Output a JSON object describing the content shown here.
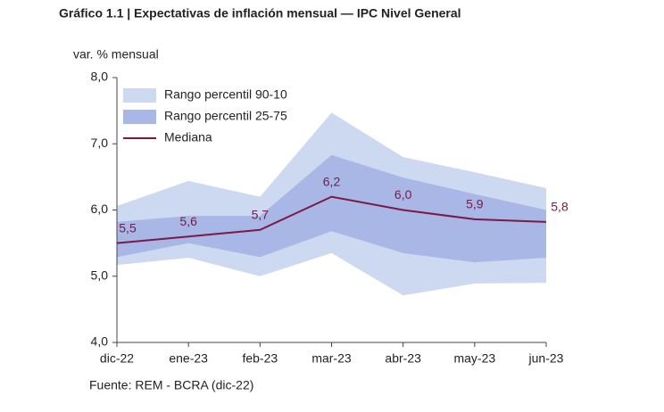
{
  "chart_data": {
    "type": "band-line",
    "title": "Gráfico 1.1 | Expectativas de inflación mensual — IPC Nivel General",
    "y_label": "var. % mensual",
    "source": "Fuente: REM - BCRA (dic-22)",
    "categories": [
      "dic-22",
      "ene-23",
      "feb-23",
      "mar-23",
      "abr-23",
      "may-23",
      "jun-23"
    ],
    "bands": [
      {
        "name": "Rango percentil 90-10",
        "color": "#cdd8f1",
        "high": [
          6.06,
          6.44,
          6.2,
          7.47,
          6.8,
          6.57,
          6.33
        ],
        "low": [
          5.17,
          5.28,
          5.0,
          5.35,
          4.71,
          4.89,
          4.9
        ]
      },
      {
        "name": "Rango percentil 25-75",
        "color": "#a8b7e5",
        "high": [
          5.82,
          5.91,
          5.91,
          6.83,
          6.49,
          6.24,
          6.0
        ],
        "low": [
          5.29,
          5.5,
          5.29,
          5.68,
          5.35,
          5.21,
          5.28
        ]
      }
    ],
    "series": [
      {
        "name": "Mediana",
        "color": "#7a1a45",
        "values": [
          5.5,
          5.6,
          5.7,
          6.2,
          6.0,
          5.86,
          5.82
        ],
        "value_labels": [
          "5,5",
          "5,6",
          "5,7",
          "6,2",
          "6,0",
          "5,9",
          "5,8"
        ]
      }
    ],
    "ylim": [
      4,
      8
    ],
    "yticks": [
      {
        "value": 4,
        "label": "4,0"
      },
      {
        "value": 5,
        "label": "5,0"
      },
      {
        "value": 6,
        "label": "6,0"
      },
      {
        "value": 7,
        "label": "7,0"
      },
      {
        "value": 8,
        "label": "8,0"
      }
    ],
    "grid": false
  }
}
